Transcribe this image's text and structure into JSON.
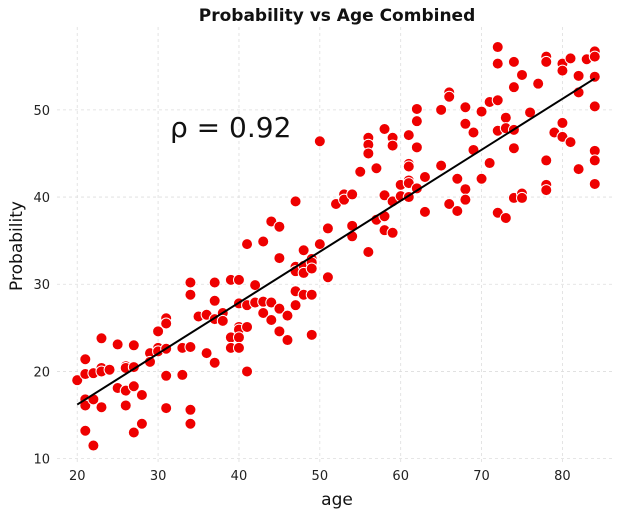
{
  "chart_data": {
    "type": "scatter",
    "title": "Probability vs Age Combined",
    "xlabel": "age",
    "ylabel": "Probability",
    "xlim": [
      17.5,
      86.5
    ],
    "ylim": [
      9.5,
      59.5
    ],
    "xticks": [
      20,
      30,
      40,
      50,
      60,
      70,
      80
    ],
    "yticks": [
      10,
      20,
      30,
      40,
      50
    ],
    "grid": true,
    "annotation": "ρ = 0.92",
    "annotation_pos": "upper-left",
    "marker_color": "#ee0000",
    "marker_edge_color": "#ffffff",
    "line_color": "#000000",
    "trend_line": {
      "x": [
        20,
        84
      ],
      "y": [
        16.2,
        53.6
      ]
    },
    "points": [
      [
        20,
        19
      ],
      [
        21,
        21.4
      ],
      [
        21,
        19.7
      ],
      [
        21,
        16.8
      ],
      [
        21,
        16.1
      ],
      [
        21,
        13.2
      ],
      [
        22,
        19.8
      ],
      [
        22,
        16.8
      ],
      [
        22,
        11.5
      ],
      [
        23,
        23.8
      ],
      [
        23,
        20.4
      ],
      [
        23,
        20
      ],
      [
        23,
        15.9
      ],
      [
        24,
        20.2
      ],
      [
        25,
        23.1
      ],
      [
        25,
        18.1
      ],
      [
        26,
        20.6
      ],
      [
        26,
        20.4
      ],
      [
        26,
        17.8
      ],
      [
        26,
        16.1
      ],
      [
        27,
        23
      ],
      [
        27,
        20.5
      ],
      [
        27,
        18.3
      ],
      [
        27,
        13
      ],
      [
        28,
        17.3
      ],
      [
        28,
        14
      ],
      [
        29,
        22.1
      ],
      [
        29,
        21.1
      ],
      [
        30,
        24.6
      ],
      [
        30,
        22.7
      ],
      [
        30,
        22.3
      ],
      [
        31,
        26.1
      ],
      [
        31,
        25.5
      ],
      [
        31,
        22.6
      ],
      [
        31,
        19.5
      ],
      [
        31,
        15.8
      ],
      [
        33,
        22.7
      ],
      [
        33,
        19.6
      ],
      [
        34,
        30.2
      ],
      [
        34,
        28.8
      ],
      [
        34,
        22.8
      ],
      [
        34,
        15.6
      ],
      [
        34,
        14
      ],
      [
        35,
        26.3
      ],
      [
        36,
        26.5
      ],
      [
        36,
        22.1
      ],
      [
        37,
        30.2
      ],
      [
        37,
        28.1
      ],
      [
        37,
        26
      ],
      [
        37,
        21
      ],
      [
        38,
        26.7
      ],
      [
        38,
        25.8
      ],
      [
        39,
        30.5
      ],
      [
        39,
        23.9
      ],
      [
        39,
        22.7
      ],
      [
        40,
        30.5
      ],
      [
        40,
        27.8
      ],
      [
        40,
        25.1
      ],
      [
        40,
        24.8
      ],
      [
        40,
        23.9
      ],
      [
        40,
        22.7
      ],
      [
        41,
        34.6
      ],
      [
        41,
        27.6
      ],
      [
        41,
        25.1
      ],
      [
        41,
        20
      ],
      [
        42,
        29.9
      ],
      [
        42,
        27.9
      ],
      [
        43,
        34.9
      ],
      [
        43,
        28
      ],
      [
        43,
        26.7
      ],
      [
        44,
        37.2
      ],
      [
        44,
        27.9
      ],
      [
        44,
        25.9
      ],
      [
        45,
        36.6
      ],
      [
        45,
        33
      ],
      [
        45,
        27.2
      ],
      [
        45,
        24.6
      ],
      [
        46,
        26.4
      ],
      [
        46,
        23.6
      ],
      [
        47,
        39.5
      ],
      [
        47,
        32
      ],
      [
        47,
        31.5
      ],
      [
        47,
        29.2
      ],
      [
        47,
        27.6
      ],
      [
        48,
        33.9
      ],
      [
        48,
        32.1
      ],
      [
        48,
        31.3
      ],
      [
        48,
        28.8
      ],
      [
        49,
        32.9
      ],
      [
        49,
        32.5
      ],
      [
        49,
        31.8
      ],
      [
        49,
        28.8
      ],
      [
        49,
        24.2
      ],
      [
        50,
        46.4
      ],
      [
        50,
        34.6
      ],
      [
        51,
        36.4
      ],
      [
        51,
        30.8
      ],
      [
        52,
        39.2
      ],
      [
        53,
        40.3
      ],
      [
        53,
        39.7
      ],
      [
        54,
        40.3
      ],
      [
        54,
        36.7
      ],
      [
        54,
        35.5
      ],
      [
        55,
        42.9
      ],
      [
        56,
        46.8
      ],
      [
        56,
        46
      ],
      [
        56,
        45
      ],
      [
        56,
        33.7
      ],
      [
        57,
        43.3
      ],
      [
        57,
        37.4
      ],
      [
        58,
        47.8
      ],
      [
        58,
        40.2
      ],
      [
        58,
        37.8
      ],
      [
        58,
        36.2
      ],
      [
        59,
        46.8
      ],
      [
        59,
        45.9
      ],
      [
        59,
        39.5
      ],
      [
        59,
        35.9
      ],
      [
        60,
        41.4
      ],
      [
        60,
        40.1
      ],
      [
        61,
        47.1
      ],
      [
        61,
        43.8
      ],
      [
        61,
        43.5
      ],
      [
        61,
        41.9
      ],
      [
        61,
        41.6
      ],
      [
        61,
        40
      ],
      [
        62,
        50.1
      ],
      [
        62,
        48.7
      ],
      [
        62,
        45.7
      ],
      [
        62,
        41
      ],
      [
        63,
        42.3
      ],
      [
        63,
        38.3
      ],
      [
        65,
        50
      ],
      [
        65,
        43.6
      ],
      [
        66,
        52
      ],
      [
        66,
        51.5
      ],
      [
        66,
        39.2
      ],
      [
        67,
        42.1
      ],
      [
        67,
        38.4
      ],
      [
        68,
        50.3
      ],
      [
        68,
        48.4
      ],
      [
        68,
        40.9
      ],
      [
        68,
        39.7
      ],
      [
        69,
        47.4
      ],
      [
        69,
        45.4
      ],
      [
        70,
        49.8
      ],
      [
        70,
        42.1
      ],
      [
        71,
        50.9
      ],
      [
        71,
        43.9
      ],
      [
        72,
        57.2
      ],
      [
        72,
        55.3
      ],
      [
        72,
        51.1
      ],
      [
        72,
        47.6
      ],
      [
        72,
        38.2
      ],
      [
        73,
        49.1
      ],
      [
        73,
        47.9
      ],
      [
        73,
        37.6
      ],
      [
        74,
        55.5
      ],
      [
        74,
        52.6
      ],
      [
        74,
        47.7
      ],
      [
        74,
        45.6
      ],
      [
        74,
        39.9
      ],
      [
        75,
        54
      ],
      [
        75,
        40.4
      ],
      [
        75,
        39.9
      ],
      [
        76,
        49.7
      ],
      [
        77,
        53
      ],
      [
        78,
        56.1
      ],
      [
        78,
        55.5
      ],
      [
        78,
        44.2
      ],
      [
        78,
        41.4
      ],
      [
        78,
        40.8
      ],
      [
        79,
        47.4
      ],
      [
        80,
        55.3
      ],
      [
        80,
        54.5
      ],
      [
        80,
        48.5
      ],
      [
        80,
        46.9
      ],
      [
        81,
        55.9
      ],
      [
        81,
        46.3
      ],
      [
        82,
        53.9
      ],
      [
        82,
        52
      ],
      [
        82,
        43.2
      ],
      [
        83,
        55.8
      ],
      [
        84,
        56.7
      ],
      [
        84,
        56.1
      ],
      [
        84,
        53.8
      ],
      [
        84,
        50.4
      ],
      [
        84,
        45.3
      ],
      [
        84,
        44.2
      ],
      [
        84,
        41.5
      ]
    ]
  }
}
